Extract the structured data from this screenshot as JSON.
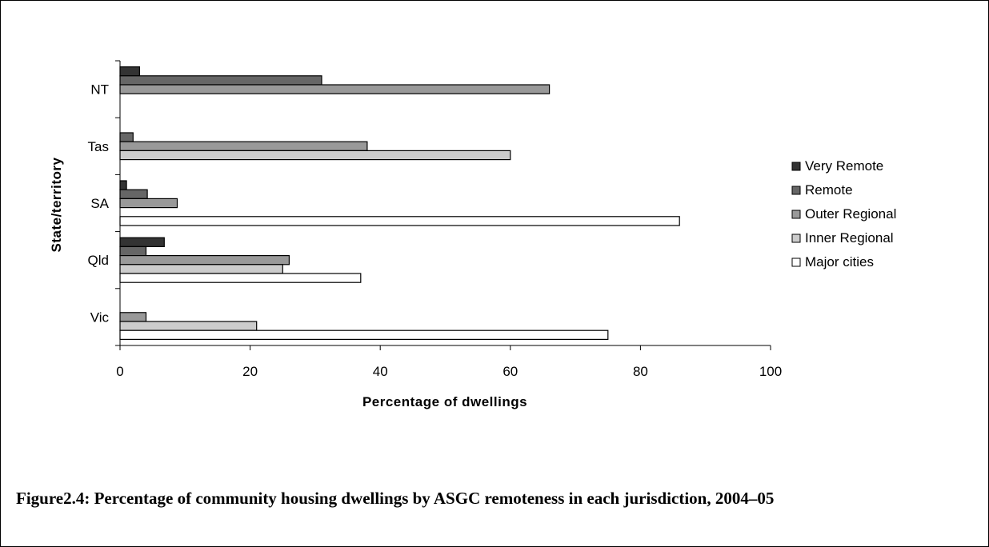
{
  "caption": "Figure2.4: Percentage of community housing dwellings by ASGC remoteness in each jurisdiction, 2004–05",
  "chart_data": {
    "type": "bar",
    "orientation": "horizontal",
    "categories": [
      "Vic",
      "Qld",
      "SA",
      "Tas",
      "NT"
    ],
    "xlabel": "Percentage of dwellings",
    "ylabel": "State/territory",
    "xlim": [
      0,
      100
    ],
    "xticks": [
      "0",
      "20",
      "40",
      "60",
      "80",
      "100"
    ],
    "grid": false,
    "legend_position": "right",
    "series": [
      {
        "name": "Very Remote",
        "color": "#333333",
        "values": [
          0,
          6.8,
          1,
          0,
          3
        ]
      },
      {
        "name": "Remote",
        "color": "#666666",
        "values": [
          0,
          4,
          4.2,
          2,
          31
        ]
      },
      {
        "name": "Outer Regional",
        "color": "#999999",
        "values": [
          4,
          26,
          8.8,
          38,
          66
        ]
      },
      {
        "name": "Inner Regional",
        "color": "#cccccc",
        "values": [
          21,
          25,
          0,
          60,
          0
        ]
      },
      {
        "name": "Major cities",
        "color": "#ffffff",
        "values": [
          75,
          37,
          86,
          0,
          0
        ]
      }
    ]
  }
}
